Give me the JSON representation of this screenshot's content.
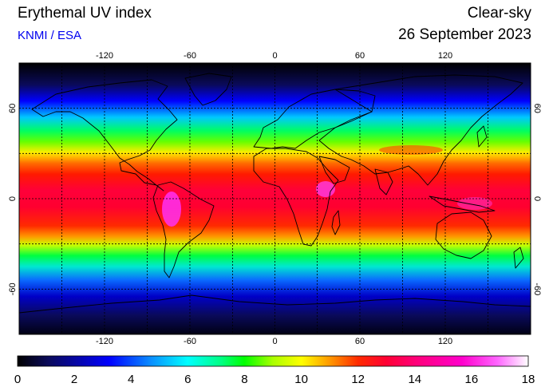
{
  "header": {
    "title": "Erythemal UV index",
    "subtitle": "KNMI / ESA",
    "condition": "Clear-sky",
    "date": "26 September 2023"
  },
  "colors": {
    "subtitle": "#0000ee",
    "frame": "#000000",
    "colorbar_stops": [
      "#000000",
      "#0a0a5a",
      "#0000ff",
      "#0aa0ff",
      "#00ffff",
      "#00ff80",
      "#00ff00",
      "#aaff00",
      "#ffff00",
      "#ff9900",
      "#ff2a00",
      "#ff0033",
      "#ff0077",
      "#ff00cc",
      "#ff66ff",
      "#ffffff"
    ]
  },
  "map": {
    "projection": "equirectangular",
    "lon_ticks": [
      -120,
      -60,
      0,
      60,
      120
    ],
    "lat_ticks": [
      60,
      0,
      -60
    ],
    "lon_tick_labels": [
      "-120",
      "-60",
      "0",
      "60",
      "120"
    ],
    "lat_tick_labels": [
      "60",
      "0",
      "-60"
    ],
    "gridlines": "dashed",
    "lon_range": [
      -180,
      180
    ],
    "lat_range": [
      -90,
      90
    ]
  },
  "colorbar": {
    "min": 0,
    "max": 18,
    "tick_labels": [
      "0",
      "2",
      "4",
      "6",
      "8",
      "10",
      "12",
      "14",
      "16",
      "18"
    ]
  }
}
